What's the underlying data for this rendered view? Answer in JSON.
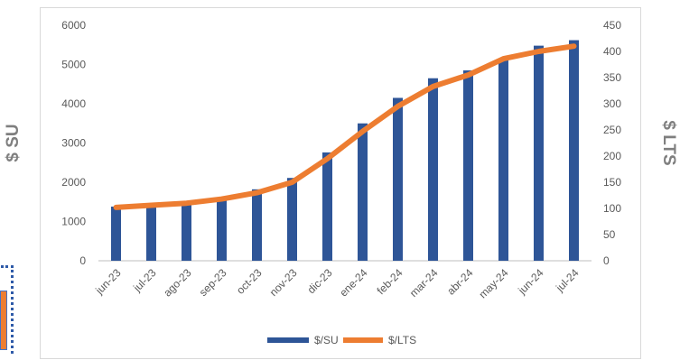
{
  "chart_data": {
    "type": "bar",
    "categories": [
      "jun-23",
      "jul-23",
      "ago-23",
      "sep-23",
      "oct-23",
      "nov-23",
      "dic-23",
      "ene-24",
      "feb-24",
      "mar-24",
      "abr-24",
      "may-24",
      "jun-24",
      "jul-24"
    ],
    "series": [
      {
        "name": "$/SU",
        "type": "bar",
        "axis": "left",
        "color": "#2e5597",
        "values": [
          1380,
          1400,
          1450,
          1570,
          1820,
          2110,
          2760,
          3500,
          4150,
          4650,
          4850,
          5150,
          5480,
          5620
        ]
      },
      {
        "name": "$/LTS",
        "type": "line",
        "axis": "right",
        "color": "#ed7d31",
        "values": [
          102,
          106,
          110,
          118,
          130,
          150,
          195,
          247,
          295,
          333,
          355,
          386,
          400,
          410
        ]
      }
    ],
    "ylabel": "$ SU",
    "y2label": "$ LTS",
    "ylim": [
      0,
      6000
    ],
    "y2lim": [
      0,
      450
    ],
    "yticks": [
      0,
      1000,
      2000,
      3000,
      4000,
      5000,
      6000
    ],
    "y2ticks": [
      0,
      50,
      100,
      150,
      200,
      250,
      300,
      350,
      400,
      450
    ],
    "grid": false,
    "legend_position": "bottom"
  }
}
